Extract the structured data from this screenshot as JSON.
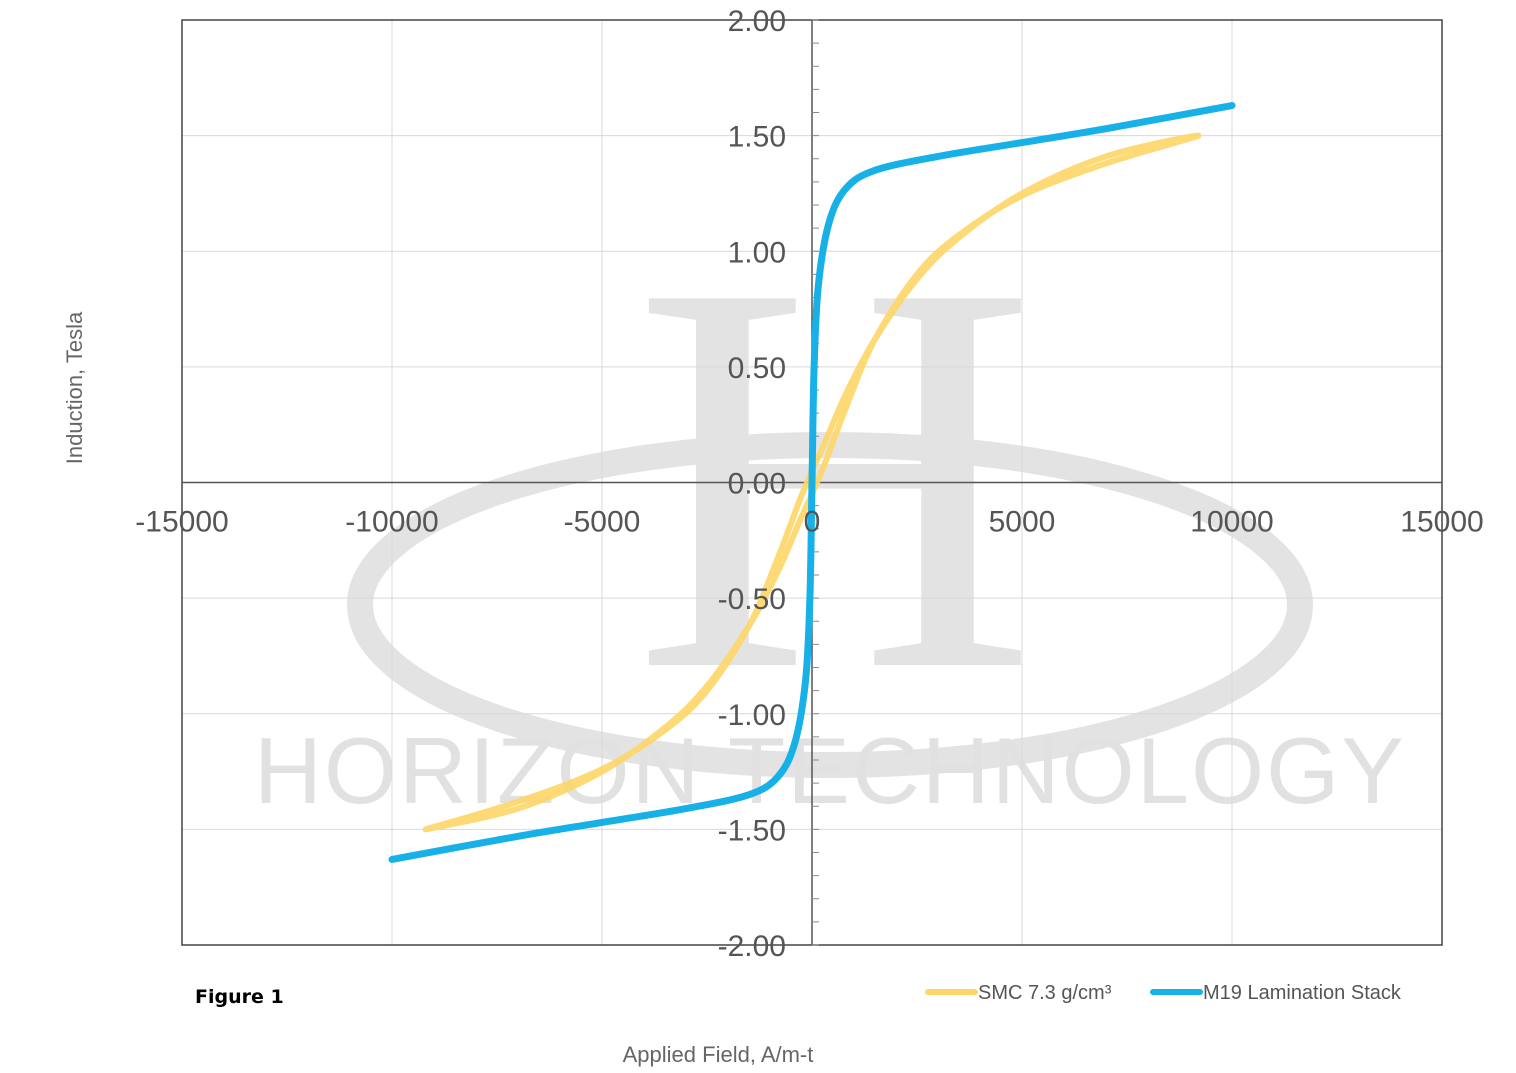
{
  "figure_label": "Figure 1",
  "watermark": {
    "letter": "H",
    "text": "HORIZON TECHNOLOGY",
    "color": "#e2e2e2"
  },
  "chart_data": {
    "type": "line",
    "title": "",
    "xlabel": "Applied Field, A/m-t",
    "ylabel": "Induction, Tesla",
    "xlim": [
      -15000,
      15000
    ],
    "ylim": [
      -2.0,
      2.0
    ],
    "x_ticks": [
      -15000,
      -10000,
      -5000,
      0,
      5000,
      10000,
      15000
    ],
    "y_ticks": [
      -2.0,
      -1.5,
      -1.0,
      -0.5,
      0.0,
      0.5,
      1.0,
      1.5,
      2.0
    ],
    "x_tick_labels": [
      "-15000",
      "-10000",
      "-5000",
      "0",
      "5000",
      "10000",
      "15000"
    ],
    "y_tick_labels": [
      "-2.00",
      "-1.50",
      "-1.00",
      "-0.50",
      "0.00",
      "0.50",
      "1.00",
      "1.50",
      "2.00"
    ],
    "grid": true,
    "legend_position": "bottom-right",
    "series": [
      {
        "name": "SMC 7.3 g/cm³",
        "color": "#fdd667",
        "points": [
          [
            -9200,
            -1.5
          ],
          [
            -7000,
            -1.38
          ],
          [
            -5000,
            -1.24
          ],
          [
            -3500,
            -1.07
          ],
          [
            -2500,
            -0.9
          ],
          [
            -1500,
            -0.62
          ],
          [
            -800,
            -0.32
          ],
          [
            -300,
            -0.08
          ],
          [
            0,
            0.05
          ],
          [
            300,
            0.17
          ],
          [
            800,
            0.38
          ],
          [
            1500,
            0.62
          ],
          [
            2500,
            0.88
          ],
          [
            3500,
            1.06
          ],
          [
            5000,
            1.25
          ],
          [
            7000,
            1.41
          ],
          [
            9200,
            1.5
          ],
          [
            7000,
            1.38
          ],
          [
            5000,
            1.24
          ],
          [
            3500,
            1.07
          ],
          [
            2500,
            0.9
          ],
          [
            1500,
            0.62
          ],
          [
            800,
            0.32
          ],
          [
            300,
            0.08
          ],
          [
            0,
            -0.05
          ],
          [
            -300,
            -0.17
          ],
          [
            -800,
            -0.38
          ],
          [
            -1500,
            -0.62
          ],
          [
            -2500,
            -0.88
          ],
          [
            -3500,
            -1.06
          ],
          [
            -5000,
            -1.25
          ],
          [
            -7000,
            -1.41
          ],
          [
            -9200,
            -1.5
          ]
        ]
      },
      {
        "name": "M19 Lamination Stack",
        "color": "#17b1e8",
        "points": [
          [
            -10000,
            -1.63
          ],
          [
            -7000,
            -1.53
          ],
          [
            -5000,
            -1.47
          ],
          [
            -3000,
            -1.41
          ],
          [
            -1500,
            -1.35
          ],
          [
            -800,
            -1.27
          ],
          [
            -400,
            -1.12
          ],
          [
            -150,
            -0.85
          ],
          [
            -50,
            -0.5
          ],
          [
            0,
            0.0
          ],
          [
            50,
            0.5
          ],
          [
            150,
            0.85
          ],
          [
            400,
            1.12
          ],
          [
            800,
            1.27
          ],
          [
            1500,
            1.35
          ],
          [
            3000,
            1.41
          ],
          [
            5000,
            1.47
          ],
          [
            7000,
            1.53
          ],
          [
            10000,
            1.63
          ],
          [
            7000,
            1.53
          ],
          [
            5000,
            1.47
          ],
          [
            3000,
            1.41
          ],
          [
            1500,
            1.35
          ],
          [
            800,
            1.27
          ],
          [
            400,
            1.12
          ],
          [
            150,
            0.85
          ],
          [
            50,
            0.5
          ],
          [
            0,
            0.0
          ],
          [
            -50,
            -0.5
          ],
          [
            -150,
            -0.85
          ],
          [
            -400,
            -1.12
          ],
          [
            -800,
            -1.27
          ],
          [
            -1500,
            -1.35
          ],
          [
            -3000,
            -1.41
          ],
          [
            -5000,
            -1.47
          ],
          [
            -7000,
            -1.53
          ],
          [
            -10000,
            -1.63
          ]
        ]
      }
    ]
  }
}
